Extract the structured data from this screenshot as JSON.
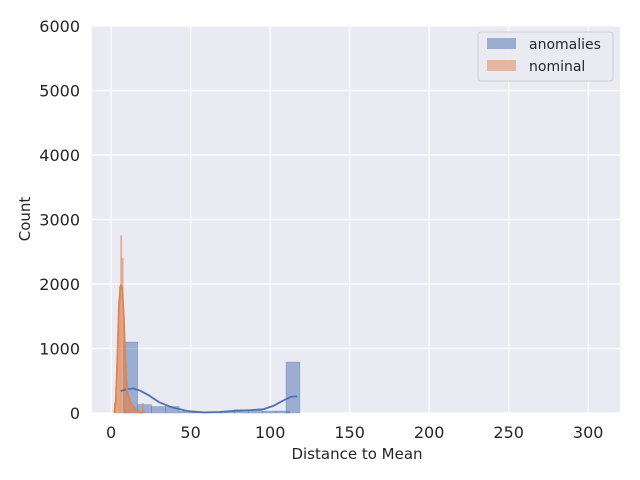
{
  "chart_data": {
    "type": "histogram",
    "title": "",
    "xlabel": "Distance to Mean",
    "ylabel": "Count",
    "xlim": [
      -12,
      320
    ],
    "ylim": [
      0,
      6000
    ],
    "xticks": [
      0,
      50,
      100,
      150,
      200,
      250,
      300
    ],
    "yticks": [
      0,
      1000,
      2000,
      3000,
      4000,
      5000,
      6000
    ],
    "grid": true,
    "legend_position": "top-right",
    "colors": {
      "background": "#eaeaf2",
      "grid": "#ffffff",
      "anomalies": "#4c72b0",
      "nominal": "#dd8452",
      "text": "#262626"
    },
    "series": [
      {
        "name": "anomalies",
        "bin_width": 8.7,
        "bins": [
          {
            "x0": 8,
            "count": 1100
          },
          {
            "x0": 16.7,
            "count": 130
          },
          {
            "x0": 25.4,
            "count": 100
          },
          {
            "x0": 34.1,
            "count": 100
          },
          {
            "x0": 42.8,
            "count": 25
          },
          {
            "x0": 51.5,
            "count": 10
          },
          {
            "x0": 60.2,
            "count": 10
          },
          {
            "x0": 68.9,
            "count": 20
          },
          {
            "x0": 77.6,
            "count": 50
          },
          {
            "x0": 86.3,
            "count": 40
          },
          {
            "x0": 95.0,
            "count": 30
          },
          {
            "x0": 103.7,
            "count": 30
          },
          {
            "x0": 110.0,
            "count": 790
          }
        ],
        "kde": [
          {
            "x": 6,
            "y": 340
          },
          {
            "x": 10,
            "y": 370
          },
          {
            "x": 14,
            "y": 380
          },
          {
            "x": 18,
            "y": 350
          },
          {
            "x": 24,
            "y": 270
          },
          {
            "x": 30,
            "y": 170
          },
          {
            "x": 38,
            "y": 90
          },
          {
            "x": 48,
            "y": 30
          },
          {
            "x": 58,
            "y": 10
          },
          {
            "x": 68,
            "y": 15
          },
          {
            "x": 78,
            "y": 35
          },
          {
            "x": 88,
            "y": 45
          },
          {
            "x": 96,
            "y": 60
          },
          {
            "x": 102,
            "y": 110
          },
          {
            "x": 108,
            "y": 190
          },
          {
            "x": 113,
            "y": 250
          },
          {
            "x": 117,
            "y": 260
          }
        ]
      },
      {
        "name": "nominal",
        "bin_width": 0.8,
        "bins": [
          {
            "x0": 2.0,
            "count": 150
          },
          {
            "x0": 2.8,
            "count": 400
          },
          {
            "x0": 3.6,
            "count": 900
          },
          {
            "x0": 4.4,
            "count": 1600
          },
          {
            "x0": 5.2,
            "count": 1950
          },
          {
            "x0": 6.0,
            "count": 2750
          },
          {
            "x0": 6.8,
            "count": 2400
          },
          {
            "x0": 7.6,
            "count": 1500
          },
          {
            "x0": 8.4,
            "count": 800
          },
          {
            "x0": 9.2,
            "count": 500
          },
          {
            "x0": 10.0,
            "count": 300
          },
          {
            "x0": 10.8,
            "count": 250
          },
          {
            "x0": 11.6,
            "count": 200
          },
          {
            "x0": 12.4,
            "count": 150
          },
          {
            "x0": 13.2,
            "count": 120
          },
          {
            "x0": 14.0,
            "count": 100
          },
          {
            "x0": 14.8,
            "count": 80
          },
          {
            "x0": 15.6,
            "count": 60
          },
          {
            "x0": 16.4,
            "count": 50
          },
          {
            "x0": 19.5,
            "count": 150
          },
          {
            "x0": 20.3,
            "count": 40
          }
        ],
        "kde": [
          {
            "x": 2,
            "y": 0
          },
          {
            "x": 3,
            "y": 200
          },
          {
            "x": 4,
            "y": 900
          },
          {
            "x": 5,
            "y": 1700
          },
          {
            "x": 6,
            "y": 1980
          },
          {
            "x": 7,
            "y": 1950
          },
          {
            "x": 8,
            "y": 1500
          },
          {
            "x": 9,
            "y": 800
          },
          {
            "x": 10,
            "y": 350
          },
          {
            "x": 12,
            "y": 180
          },
          {
            "x": 14,
            "y": 100
          },
          {
            "x": 16,
            "y": 40
          },
          {
            "x": 18,
            "y": 10
          },
          {
            "x": 20,
            "y": 5
          }
        ]
      }
    ]
  }
}
